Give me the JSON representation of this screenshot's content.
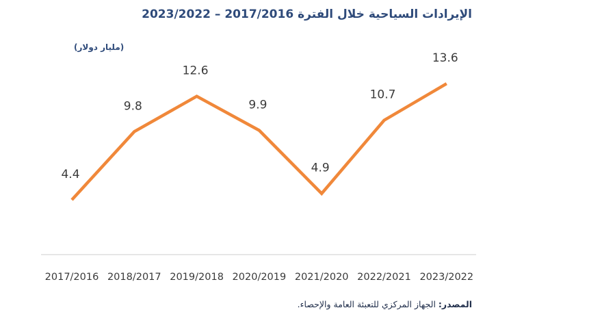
{
  "chart_data": {
    "type": "line",
    "title": "الإيرادات السياحية خلال الفترة 2017/2016 – 2023/2022",
    "ylabel": "(مليار دولار)",
    "xlabel": "",
    "categories": [
      "2017/2016",
      "2018/2017",
      "2019/2018",
      "2020/2019",
      "2021/2020",
      "2022/2021",
      "2023/2022"
    ],
    "series": [
      {
        "values": [
          4.4,
          9.8,
          12.6,
          9.9,
          4.9,
          10.7,
          13.6
        ],
        "color": "#f0883a"
      }
    ],
    "data_labels": [
      "4.4",
      "9.8",
      "12.6",
      "9.9",
      "4.9",
      "10.7",
      "13.6"
    ],
    "ylim": [
      0,
      15
    ],
    "grid": false,
    "legend": "none",
    "axis_color": "#cccccc"
  },
  "source": {
    "label": "المصدر:",
    "text": "الجهاز المركزي للتعبئة العامة والإحصاء."
  }
}
